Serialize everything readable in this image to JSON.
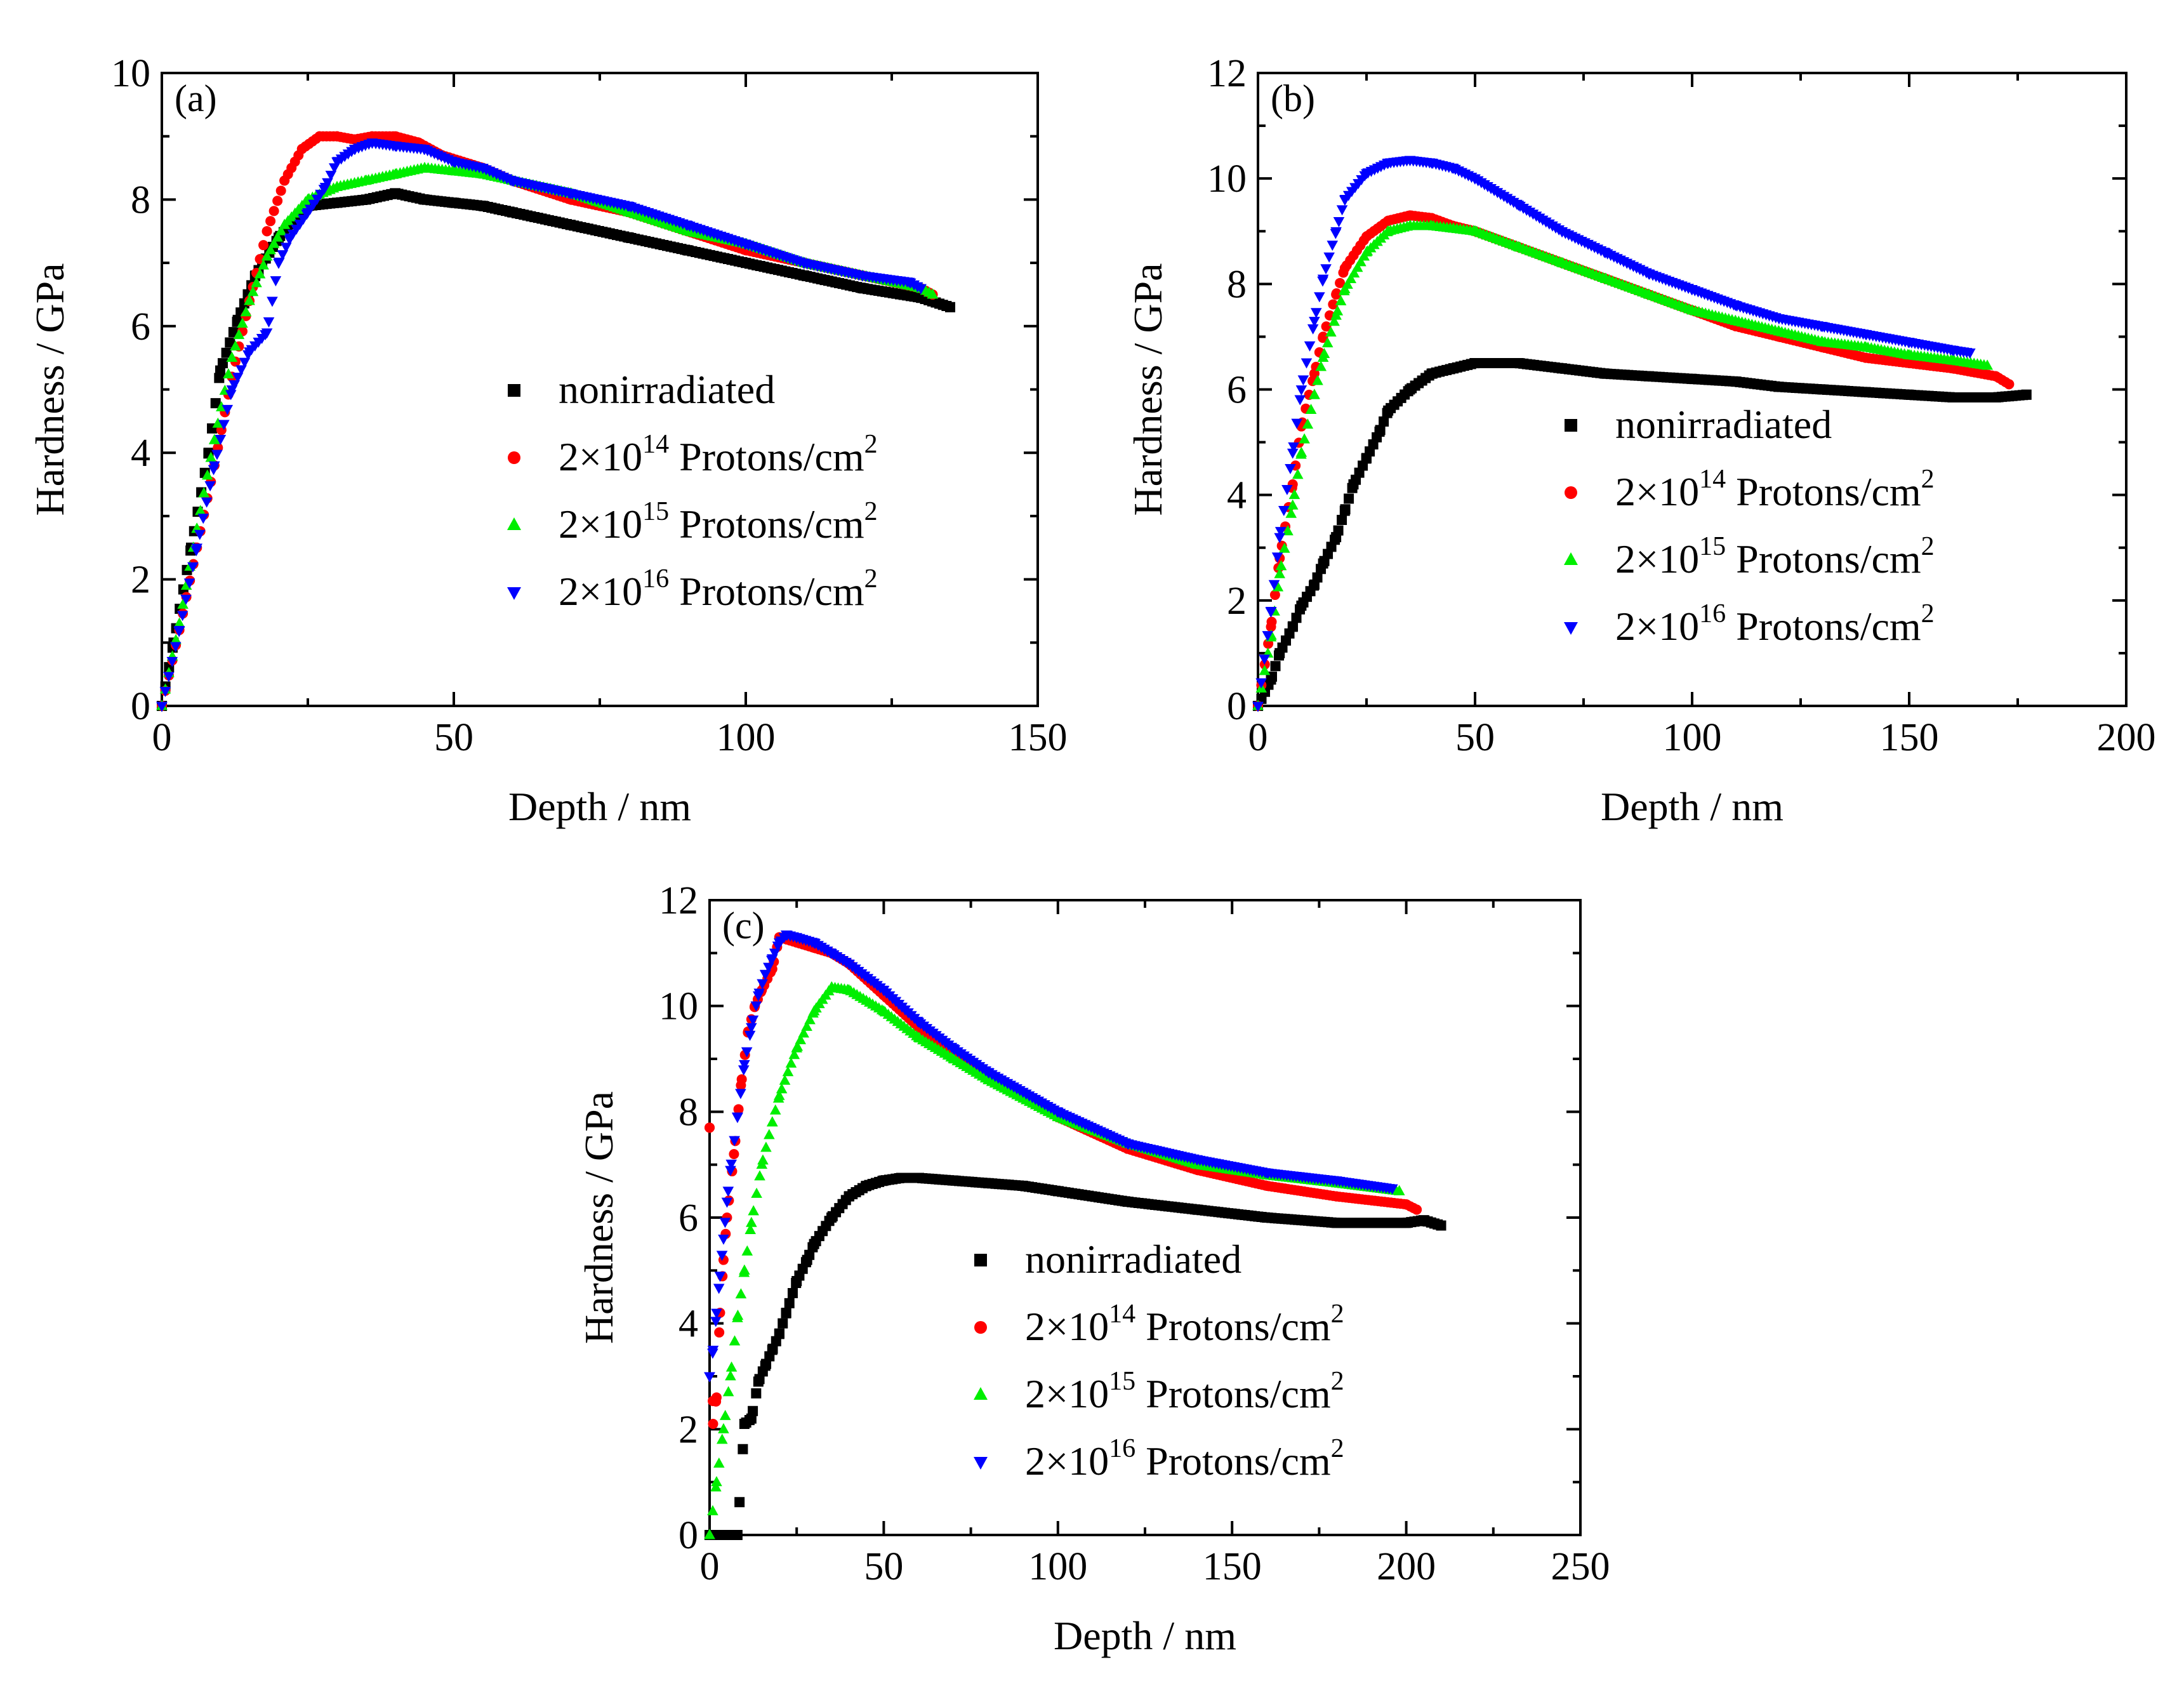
{
  "legend_colors": {
    "nonirradiated": "#000000",
    "1e14": "#ff0000",
    "1e15": "#00ee00",
    "1e16": "#0000ff"
  },
  "chart_data": [
    {
      "type": "scatter",
      "panel_label": "(a)",
      "xlabel": "Depth / nm",
      "ylabel": "Hardness / GPa",
      "xlim": [
        0,
        150
      ],
      "ylim": [
        0,
        10
      ],
      "xticks": [
        0,
        50,
        100,
        150
      ],
      "yticks": [
        0,
        2,
        4,
        6,
        8,
        10
      ],
      "legend": [
        {
          "text": "nonirradiated"
        },
        {
          "pre": "2×10",
          "sup": "14",
          "post": " Protons/cm",
          "sup2": "2"
        },
        {
          "pre": "2×10",
          "sup": "15",
          "post": " Protons/cm",
          "sup2": "2"
        },
        {
          "pre": "2×10",
          "sup": "16",
          "post": " Protons/cm",
          "sup2": "2"
        }
      ],
      "series": [
        {
          "name": "nonirradiated",
          "marker": "square",
          "x": [
            0,
            2,
            5,
            8,
            10,
            13,
            16,
            20,
            25,
            30,
            35,
            40,
            45,
            50,
            55,
            60,
            70,
            80,
            90,
            100,
            110,
            120,
            130,
            135
          ],
          "y": [
            0,
            1.0,
            2.5,
            4.0,
            5.3,
            6.1,
            6.8,
            7.4,
            7.9,
            7.95,
            8.0,
            8.1,
            8.0,
            7.95,
            7.9,
            7.8,
            7.6,
            7.4,
            7.2,
            7.0,
            6.8,
            6.6,
            6.45,
            6.3
          ]
        },
        {
          "name": "2×10^14 Protons/cm^2",
          "marker": "circle",
          "x": [
            0,
            3,
            6,
            9,
            12,
            15,
            18,
            21,
            24,
            27,
            30,
            33,
            36,
            40,
            44,
            48,
            55,
            60,
            70,
            80,
            90,
            100,
            110,
            120,
            130,
            132
          ],
          "y": [
            0,
            1.2,
            2.5,
            3.8,
            5.2,
            6.4,
            7.5,
            8.3,
            8.8,
            9.0,
            9.0,
            8.95,
            9.0,
            9.0,
            8.9,
            8.7,
            8.5,
            8.3,
            8.0,
            7.8,
            7.5,
            7.2,
            7.0,
            6.8,
            6.6,
            6.5
          ]
        },
        {
          "name": "2×10^15 Protons/cm^2",
          "marker": "triangle-up",
          "x": [
            0,
            3,
            6,
            9,
            12,
            15,
            18,
            21,
            25,
            30,
            35,
            40,
            45,
            50,
            55,
            60,
            70,
            80,
            90,
            100,
            110,
            120,
            130,
            132
          ],
          "y": [
            0,
            1.3,
            2.8,
            4.2,
            5.5,
            6.4,
            7.1,
            7.6,
            8.0,
            8.2,
            8.3,
            8.4,
            8.5,
            8.45,
            8.4,
            8.3,
            8.1,
            7.8,
            7.5,
            7.3,
            7.0,
            6.8,
            6.6,
            6.5
          ]
        },
        {
          "name": "2×10^16 Protons/cm^2",
          "marker": "triangle-down",
          "x": [
            0,
            3,
            6,
            9,
            12,
            15,
            18,
            20,
            22,
            25,
            28,
            30,
            33,
            36,
            40,
            45,
            50,
            55,
            60,
            70,
            80,
            90,
            100,
            110,
            120,
            128,
            130
          ],
          "y": [
            0,
            1.2,
            2.5,
            3.8,
            5.0,
            5.6,
            5.9,
            7.0,
            7.4,
            7.8,
            8.2,
            8.6,
            8.8,
            8.9,
            8.85,
            8.8,
            8.6,
            8.5,
            8.3,
            8.1,
            7.9,
            7.6,
            7.3,
            7.0,
            6.8,
            6.7,
            6.6
          ]
        }
      ]
    },
    {
      "type": "scatter",
      "panel_label": "(b)",
      "xlabel": "Depth / nm",
      "ylabel": "Hardness  / GPa",
      "xlim": [
        0,
        200
      ],
      "ylim": [
        0,
        12
      ],
      "xticks": [
        0,
        50,
        100,
        150,
        200
      ],
      "yticks": [
        0,
        2,
        4,
        6,
        8,
        10,
        12
      ],
      "legend": [
        {
          "text": "nonirradiated"
        },
        {
          "pre": "2×10",
          "sup": "14",
          "post": " Protons/cm",
          "sup2": "2"
        },
        {
          "pre": "2×10",
          "sup": "15",
          "post": " Protons/cm",
          "sup2": "2"
        },
        {
          "pre": "2×10",
          "sup": "16",
          "post": " Protons/cm",
          "sup2": "2"
        }
      ],
      "series": [
        {
          "name": "nonirradiated",
          "marker": "square",
          "x": [
            0,
            3,
            5,
            8,
            10,
            13,
            15,
            18,
            20,
            22,
            25,
            28,
            30,
            35,
            40,
            45,
            50,
            55,
            60,
            70,
            80,
            90,
            100,
            110,
            120,
            130,
            140,
            150,
            160,
            170,
            177
          ],
          "y": [
            0,
            0.5,
            1.0,
            1.5,
            1.9,
            2.3,
            2.7,
            3.2,
            3.7,
            4.2,
            4.7,
            5.2,
            5.6,
            6.0,
            6.3,
            6.4,
            6.5,
            6.5,
            6.5,
            6.4,
            6.3,
            6.25,
            6.2,
            6.15,
            6.05,
            6.0,
            5.95,
            5.9,
            5.85,
            5.85,
            5.9
          ]
        },
        {
          "name": "2×10^14 Protons/cm^2",
          "marker": "circle",
          "x": [
            0,
            3,
            5,
            8,
            10,
            13,
            15,
            18,
            20,
            25,
            30,
            35,
            40,
            45,
            50,
            60,
            70,
            80,
            90,
            100,
            110,
            120,
            130,
            140,
            150,
            160,
            170,
            173
          ],
          "y": [
            0,
            1.5,
            2.8,
            4.2,
            5.3,
            6.3,
            7.0,
            7.8,
            8.3,
            8.9,
            9.2,
            9.3,
            9.25,
            9.1,
            9.0,
            8.7,
            8.4,
            8.1,
            7.8,
            7.5,
            7.2,
            7.0,
            6.8,
            6.6,
            6.5,
            6.4,
            6.25,
            6.1
          ]
        },
        {
          "name": "2×10^15 Protons/cm^2",
          "marker": "triangle-up",
          "x": [
            0,
            3,
            5,
            8,
            10,
            13,
            15,
            18,
            20,
            25,
            30,
            35,
            40,
            45,
            50,
            60,
            70,
            80,
            90,
            100,
            110,
            120,
            130,
            140,
            150,
            160,
            168
          ],
          "y": [
            0,
            1.3,
            2.5,
            3.8,
            4.8,
            5.9,
            6.6,
            7.4,
            7.9,
            8.6,
            9.0,
            9.1,
            9.1,
            9.05,
            9.0,
            8.7,
            8.4,
            8.1,
            7.8,
            7.5,
            7.3,
            7.1,
            6.9,
            6.8,
            6.65,
            6.55,
            6.45
          ]
        },
        {
          "name": "2×10^16 Protons/cm^2",
          "marker": "triangle-down",
          "x": [
            0,
            3,
            5,
            8,
            10,
            13,
            15,
            18,
            20,
            25,
            30,
            35,
            40,
            45,
            50,
            60,
            70,
            80,
            90,
            100,
            110,
            120,
            130,
            140,
            150,
            160,
            164
          ],
          "y": [
            0,
            1.8,
            3.2,
            4.8,
            6.0,
            7.3,
            8.1,
            9.0,
            9.6,
            10.1,
            10.3,
            10.35,
            10.3,
            10.2,
            10.0,
            9.5,
            9.0,
            8.6,
            8.2,
            7.9,
            7.6,
            7.35,
            7.2,
            7.05,
            6.9,
            6.75,
            6.7
          ]
        }
      ]
    },
    {
      "type": "scatter",
      "panel_label": "(c)",
      "xlabel": "Depth / nm",
      "ylabel": "Hardness / GPa",
      "xlim": [
        0,
        250
      ],
      "ylim": [
        0,
        12
      ],
      "xticks": [
        0,
        50,
        100,
        150,
        200,
        250
      ],
      "yticks": [
        0,
        2,
        4,
        6,
        8,
        10,
        12
      ],
      "legend": [
        {
          "text": "nonirradiated"
        },
        {
          "pre": "2×10",
          "sup": "14",
          "post": " Protons/cm",
          "sup2": "2"
        },
        {
          "pre": "2×10",
          "sup": "15",
          "post": " Protons/cm",
          "sup2": "2"
        },
        {
          "pre": "2×10",
          "sup": "16",
          "post": " Protons/cm",
          "sup2": "2"
        }
      ],
      "series": [
        {
          "name": "nonirradiated",
          "marker": "square",
          "x": [
            0,
            2,
            4,
            6,
            8,
            10,
            12,
            14,
            16,
            18,
            20,
            22,
            25,
            28,
            30,
            35,
            40,
            45,
            50,
            55,
            60,
            70,
            80,
            90,
            100,
            120,
            140,
            160,
            180,
            200,
            205,
            210
          ],
          "y": [
            0,
            0,
            0,
            0,
            0,
            2.1,
            2.2,
            2.9,
            3.2,
            3.5,
            3.8,
            4.2,
            4.8,
            5.2,
            5.5,
            6.0,
            6.4,
            6.6,
            6.7,
            6.75,
            6.75,
            6.7,
            6.65,
            6.6,
            6.5,
            6.3,
            6.15,
            6.0,
            5.9,
            5.9,
            5.95,
            5.85
          ]
        },
        {
          "name": "2×10^14 Protons/cm^2",
          "marker": "circle",
          "x": [
            0,
            1,
            2,
            3,
            4,
            5,
            7,
            9,
            11,
            13,
            15,
            18,
            20,
            25,
            30,
            35,
            40,
            50,
            60,
            70,
            80,
            100,
            120,
            140,
            160,
            180,
            200,
            203
          ],
          "y": [
            7.7,
            2.1,
            2.6,
            4.2,
            5.2,
            6.0,
            7.2,
            8.5,
            9.5,
            10.0,
            10.3,
            10.7,
            11.3,
            11.2,
            11.1,
            11.0,
            10.8,
            10.2,
            9.6,
            9.1,
            8.7,
            7.9,
            7.3,
            6.9,
            6.6,
            6.4,
            6.25,
            6.15
          ]
        },
        {
          "name": "2×10^15 Protons/cm^2",
          "marker": "triangle-up",
          "x": [
            0,
            2,
            4,
            6,
            8,
            10,
            12,
            15,
            18,
            20,
            25,
            30,
            35,
            40,
            50,
            60,
            70,
            80,
            100,
            120,
            140,
            160,
            180,
            198
          ],
          "y": [
            0,
            1.0,
            2.0,
            3.0,
            4.1,
            5.0,
            5.9,
            7.0,
            7.8,
            8.3,
            9.2,
            9.9,
            10.35,
            10.3,
            9.9,
            9.4,
            9.0,
            8.6,
            7.9,
            7.4,
            7.0,
            6.8,
            6.65,
            6.5
          ]
        },
        {
          "name": "2×10^16 Protons/cm^2",
          "marker": "triangle-down",
          "x": [
            0,
            1,
            2,
            3,
            4,
            5,
            6,
            8,
            10,
            12,
            14,
            16,
            18,
            20,
            22,
            25,
            30,
            35,
            40,
            50,
            60,
            70,
            80,
            100,
            120,
            140,
            160,
            180,
            196
          ],
          "y": [
            3.0,
            3.5,
            4.2,
            4.9,
            5.6,
            6.3,
            6.9,
            7.9,
            8.9,
            9.6,
            10.2,
            10.6,
            10.9,
            11.2,
            11.35,
            11.3,
            11.2,
            11.0,
            10.8,
            10.3,
            9.7,
            9.2,
            8.75,
            8.0,
            7.4,
            7.1,
            6.85,
            6.7,
            6.55
          ]
        }
      ]
    }
  ]
}
